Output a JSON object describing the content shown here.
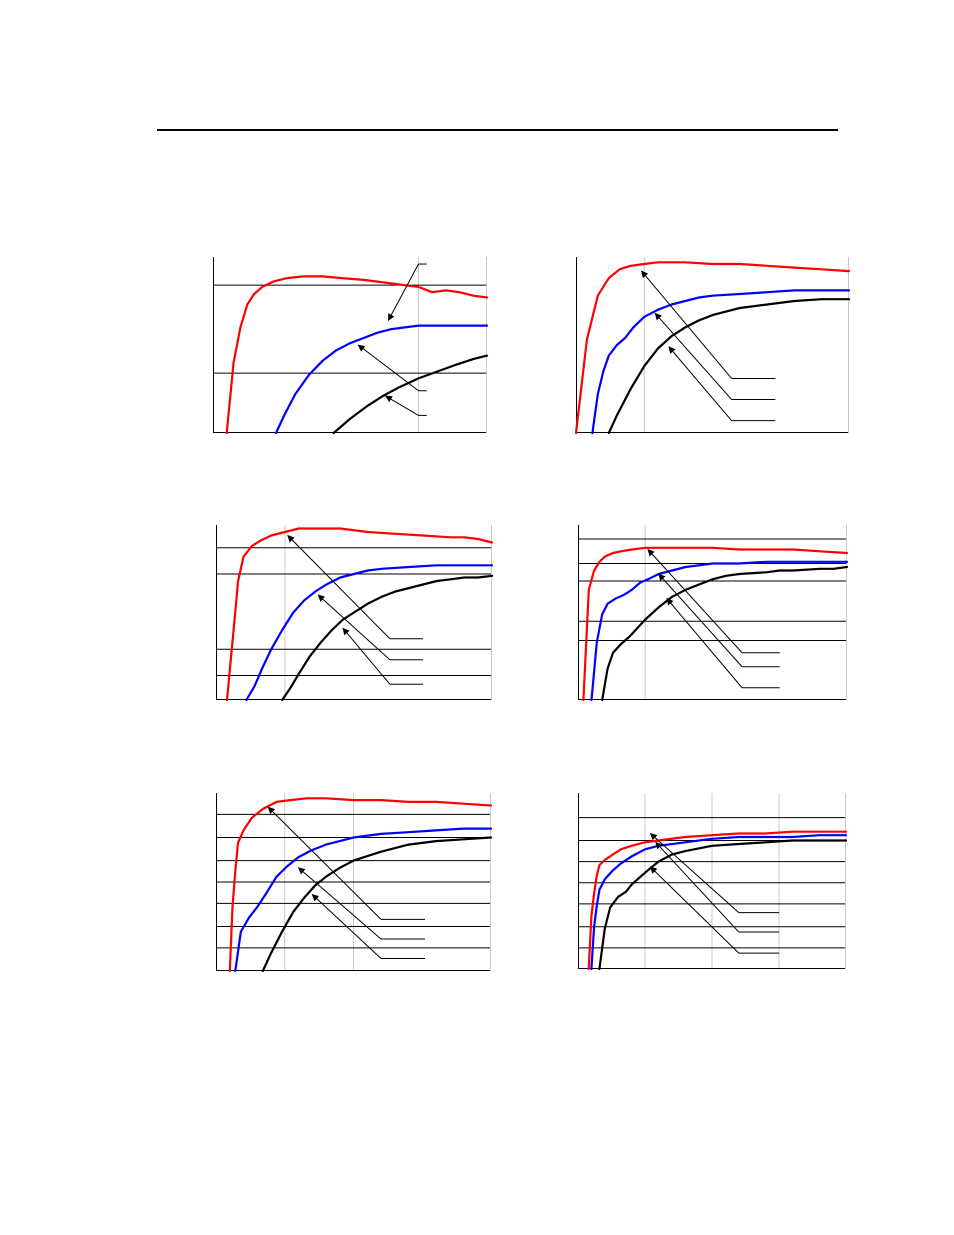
{
  "page": {
    "header_rule": true
  },
  "colors": {
    "red": "#ff0000",
    "blue": "#0000ff",
    "black": "#000000",
    "grid": "#c8c8c8",
    "frame": "#000000"
  },
  "chart_data": [
    {
      "type": "line",
      "title": "",
      "xlabel": "",
      "ylabel": "",
      "x_range": [
        0,
        1
      ],
      "y_range": [
        0,
        1
      ],
      "grid_x": [
        0.75
      ],
      "grid_y": [
        0.34,
        0.84
      ],
      "series": [
        {
          "color": "#ff0000",
          "x": [
            0.05,
            0.075,
            0.1,
            0.125,
            0.15,
            0.18,
            0.22,
            0.27,
            0.33,
            0.4,
            0.47,
            0.55,
            0.6,
            0.65,
            0.7,
            0.75,
            0.8,
            0.85,
            0.9,
            0.95,
            1.0
          ],
          "y": [
            0.0,
            0.4,
            0.6,
            0.73,
            0.79,
            0.83,
            0.86,
            0.88,
            0.89,
            0.89,
            0.88,
            0.87,
            0.86,
            0.85,
            0.84,
            0.83,
            0.8,
            0.81,
            0.8,
            0.78,
            0.77
          ]
        },
        {
          "color": "#0000ff",
          "x": [
            0.23,
            0.26,
            0.3,
            0.35,
            0.4,
            0.45,
            0.5,
            0.55,
            0.6,
            0.65,
            0.7,
            0.75,
            0.8,
            0.85,
            1.0
          ],
          "y": [
            0.0,
            0.1,
            0.22,
            0.33,
            0.41,
            0.47,
            0.51,
            0.54,
            0.57,
            0.59,
            0.6,
            0.61,
            0.61,
            0.61,
            0.61
          ]
        },
        {
          "color": "#000000",
          "x": [
            0.44,
            0.5,
            0.56,
            0.62,
            0.68,
            0.75,
            0.82,
            0.89,
            0.95,
            1.0
          ],
          "y": [
            0.0,
            0.08,
            0.15,
            0.21,
            0.26,
            0.31,
            0.35,
            0.39,
            0.42,
            0.44
          ]
        }
      ],
      "callouts": [
        {
          "from": [
            0.64,
            0.64
          ],
          "knee": [
            0.75,
            0.96
          ],
          "to": [
            0.78,
            0.96
          ]
        },
        {
          "from": [
            0.53,
            0.5
          ],
          "knee": [
            0.75,
            0.24
          ],
          "to": [
            0.78,
            0.24
          ]
        },
        {
          "from": [
            0.63,
            0.21
          ],
          "knee": [
            0.75,
            0.1
          ],
          "to": [
            0.78,
            0.1
          ]
        }
      ]
    },
    {
      "type": "line",
      "title": "",
      "xlabel": "",
      "ylabel": "",
      "x_range": [
        0,
        1
      ],
      "y_range": [
        0,
        1
      ],
      "grid_x": [
        0.25
      ],
      "grid_y": [],
      "series": [
        {
          "color": "#ff0000",
          "x": [
            0.0,
            0.04,
            0.08,
            0.12,
            0.16,
            0.2,
            0.25,
            0.3,
            0.35,
            0.4,
            0.5,
            0.6,
            0.7,
            0.8,
            0.9,
            1.0
          ],
          "y": [
            0.0,
            0.53,
            0.78,
            0.88,
            0.93,
            0.95,
            0.96,
            0.97,
            0.97,
            0.97,
            0.96,
            0.96,
            0.95,
            0.94,
            0.93,
            0.92
          ]
        },
        {
          "color": "#0000ff",
          "x": [
            0.06,
            0.08,
            0.1,
            0.12,
            0.15,
            0.18,
            0.21,
            0.25,
            0.3,
            0.35,
            0.4,
            0.45,
            0.5,
            0.6,
            0.7,
            0.8,
            0.9,
            1.0
          ],
          "y": [
            0.0,
            0.22,
            0.35,
            0.44,
            0.5,
            0.54,
            0.6,
            0.66,
            0.7,
            0.73,
            0.75,
            0.77,
            0.78,
            0.79,
            0.8,
            0.81,
            0.81,
            0.81
          ]
        },
        {
          "color": "#000000",
          "x": [
            0.12,
            0.15,
            0.2,
            0.25,
            0.3,
            0.35,
            0.4,
            0.45,
            0.5,
            0.6,
            0.7,
            0.8,
            0.9,
            1.0
          ],
          "y": [
            0.0,
            0.1,
            0.25,
            0.38,
            0.48,
            0.55,
            0.6,
            0.64,
            0.67,
            0.71,
            0.73,
            0.75,
            0.76,
            0.76
          ]
        }
      ],
      "callouts": [
        {
          "from": [
            0.24,
            0.92
          ],
          "knee": [
            0.57,
            0.31
          ],
          "to": [
            0.73,
            0.31
          ]
        },
        {
          "from": [
            0.29,
            0.68
          ],
          "knee": [
            0.57,
            0.19
          ],
          "to": [
            0.73,
            0.19
          ]
        },
        {
          "from": [
            0.34,
            0.49
          ],
          "knee": [
            0.57,
            0.07
          ],
          "to": [
            0.73,
            0.07
          ]
        }
      ]
    },
    {
      "type": "line",
      "title": "",
      "xlabel": "",
      "ylabel": "",
      "x_range": [
        0,
        1
      ],
      "y_range": [
        0,
        1
      ],
      "grid_x": [
        0.25
      ],
      "grid_y": [
        0.14,
        0.29,
        0.72,
        0.87
      ],
      "series": [
        {
          "color": "#ff0000",
          "x": [
            0.04,
            0.06,
            0.08,
            0.1,
            0.13,
            0.16,
            0.2,
            0.25,
            0.3,
            0.35,
            0.45,
            0.55,
            0.65,
            0.75,
            0.85,
            0.9,
            0.95,
            1.0
          ],
          "y": [
            0.0,
            0.34,
            0.68,
            0.82,
            0.88,
            0.91,
            0.94,
            0.96,
            0.98,
            0.98,
            0.98,
            0.96,
            0.95,
            0.94,
            0.93,
            0.93,
            0.92,
            0.9
          ]
        },
        {
          "color": "#0000ff",
          "x": [
            0.11,
            0.14,
            0.17,
            0.2,
            0.24,
            0.28,
            0.32,
            0.36,
            0.4,
            0.45,
            0.5,
            0.55,
            0.6,
            0.7,
            0.8,
            0.9,
            1.0
          ],
          "y": [
            0.0,
            0.08,
            0.19,
            0.29,
            0.4,
            0.5,
            0.57,
            0.62,
            0.66,
            0.7,
            0.72,
            0.74,
            0.75,
            0.76,
            0.77,
            0.77,
            0.77
          ]
        },
        {
          "color": "#000000",
          "x": [
            0.24,
            0.27,
            0.3,
            0.34,
            0.38,
            0.42,
            0.46,
            0.5,
            0.55,
            0.6,
            0.65,
            0.7,
            0.75,
            0.8,
            0.85,
            0.9,
            0.95,
            1.0
          ],
          "y": [
            0.0,
            0.07,
            0.15,
            0.25,
            0.33,
            0.4,
            0.46,
            0.5,
            0.55,
            0.59,
            0.62,
            0.64,
            0.66,
            0.68,
            0.69,
            0.7,
            0.7,
            0.71
          ]
        }
      ],
      "callouts": [
        {
          "from": [
            0.26,
            0.94
          ],
          "knee": [
            0.63,
            0.35
          ],
          "to": [
            0.75,
            0.35
          ]
        },
        {
          "from": [
            0.37,
            0.6
          ],
          "knee": [
            0.63,
            0.23
          ],
          "to": [
            0.75,
            0.23
          ]
        },
        {
          "from": [
            0.46,
            0.41
          ],
          "knee": [
            0.63,
            0.09
          ],
          "to": [
            0.75,
            0.09
          ]
        }
      ]
    },
    {
      "type": "line",
      "title": "",
      "xlabel": "",
      "ylabel": "",
      "x_range": [
        0,
        1
      ],
      "y_range": [
        0,
        1
      ],
      "grid_x": [
        0.25
      ],
      "grid_y": [
        0.34,
        0.45,
        0.68,
        0.78,
        0.92
      ],
      "series": [
        {
          "color": "#ff0000",
          "x": [
            0.02,
            0.04,
            0.06,
            0.08,
            0.1,
            0.13,
            0.16,
            0.2,
            0.25,
            0.3,
            0.4,
            0.5,
            0.6,
            0.7,
            0.8,
            0.9,
            1.0
          ],
          "y": [
            0.0,
            0.63,
            0.74,
            0.79,
            0.82,
            0.84,
            0.85,
            0.86,
            0.87,
            0.87,
            0.87,
            0.87,
            0.86,
            0.86,
            0.86,
            0.85,
            0.84
          ]
        },
        {
          "color": "#0000ff",
          "x": [
            0.05,
            0.07,
            0.09,
            0.11,
            0.14,
            0.17,
            0.2,
            0.23,
            0.26,
            0.3,
            0.35,
            0.4,
            0.45,
            0.5,
            0.6,
            0.7,
            0.8,
            0.9,
            1.0
          ],
          "y": [
            0.0,
            0.33,
            0.49,
            0.55,
            0.58,
            0.6,
            0.63,
            0.67,
            0.69,
            0.72,
            0.74,
            0.76,
            0.77,
            0.78,
            0.78,
            0.79,
            0.79,
            0.79,
            0.79
          ]
        },
        {
          "color": "#000000",
          "x": [
            0.09,
            0.11,
            0.13,
            0.16,
            0.19,
            0.22,
            0.25,
            0.3,
            0.35,
            0.4,
            0.45,
            0.5,
            0.55,
            0.6,
            0.7,
            0.75,
            0.8,
            0.9,
            0.95,
            1.0
          ],
          "y": [
            0.0,
            0.18,
            0.27,
            0.32,
            0.36,
            0.41,
            0.46,
            0.53,
            0.59,
            0.63,
            0.66,
            0.69,
            0.71,
            0.72,
            0.73,
            0.74,
            0.74,
            0.75,
            0.75,
            0.76
          ]
        }
      ],
      "callouts": [
        {
          "from": [
            0.26,
            0.86
          ],
          "knee": [
            0.61,
            0.27
          ],
          "to": [
            0.75,
            0.27
          ]
        },
        {
          "from": [
            0.3,
            0.72
          ],
          "knee": [
            0.61,
            0.19
          ],
          "to": [
            0.75,
            0.19
          ]
        },
        {
          "from": [
            0.33,
            0.58
          ],
          "knee": [
            0.61,
            0.07
          ],
          "to": [
            0.75,
            0.07
          ]
        }
      ]
    },
    {
      "type": "line",
      "title": "",
      "xlabel": "",
      "ylabel": "",
      "x_range": [
        0,
        1
      ],
      "y_range": [
        0,
        1
      ],
      "grid_x": [
        0.25,
        0.5
      ],
      "grid_y": [
        0.13,
        0.25,
        0.38,
        0.5,
        0.62,
        0.75,
        0.88
      ],
      "series": [
        {
          "color": "#ff0000",
          "x": [
            0.05,
            0.06,
            0.07,
            0.08,
            0.1,
            0.13,
            0.17,
            0.22,
            0.27,
            0.33,
            0.4,
            0.5,
            0.6,
            0.7,
            0.8,
            0.9,
            1.0
          ],
          "y": [
            0.0,
            0.36,
            0.56,
            0.72,
            0.79,
            0.86,
            0.91,
            0.95,
            0.96,
            0.97,
            0.97,
            0.96,
            0.96,
            0.95,
            0.95,
            0.94,
            0.93
          ]
        },
        {
          "color": "#0000ff",
          "x": [
            0.07,
            0.09,
            0.12,
            0.15,
            0.18,
            0.22,
            0.26,
            0.3,
            0.35,
            0.4,
            0.45,
            0.5,
            0.6,
            0.7,
            0.8,
            0.9,
            1.0
          ],
          "y": [
            0.0,
            0.22,
            0.3,
            0.36,
            0.43,
            0.53,
            0.59,
            0.64,
            0.68,
            0.71,
            0.73,
            0.75,
            0.77,
            0.78,
            0.79,
            0.8,
            0.8
          ]
        },
        {
          "color": "#000000",
          "x": [
            0.17,
            0.2,
            0.24,
            0.28,
            0.32,
            0.36,
            0.4,
            0.45,
            0.5,
            0.6,
            0.7,
            0.8,
            0.9,
            1.0
          ],
          "y": [
            0.0,
            0.1,
            0.22,
            0.33,
            0.41,
            0.48,
            0.53,
            0.58,
            0.62,
            0.67,
            0.71,
            0.73,
            0.74,
            0.75
          ]
        }
      ],
      "callouts": [
        {
          "from": [
            0.19,
            0.92
          ],
          "knee": [
            0.6,
            0.29
          ],
          "to": [
            0.76,
            0.29
          ]
        },
        {
          "from": [
            0.3,
            0.58
          ],
          "knee": [
            0.6,
            0.18
          ],
          "to": [
            0.76,
            0.18
          ]
        },
        {
          "from": [
            0.35,
            0.43
          ],
          "knee": [
            0.6,
            0.07
          ],
          "to": [
            0.76,
            0.07
          ]
        }
      ]
    },
    {
      "type": "line",
      "title": "",
      "xlabel": "",
      "ylabel": "",
      "x_range": [
        0,
        1
      ],
      "y_range": [
        0,
        1
      ],
      "grid_x": [
        0.25,
        0.5,
        0.75
      ],
      "grid_y": [
        0.12,
        0.24,
        0.37,
        0.49,
        0.61,
        0.73,
        0.86
      ],
      "series": [
        {
          "color": "#ff0000",
          "x": [
            0.04,
            0.05,
            0.06,
            0.07,
            0.08,
            0.1,
            0.13,
            0.16,
            0.2,
            0.25,
            0.3,
            0.4,
            0.5,
            0.6,
            0.7,
            0.8,
            0.9,
            1.0
          ],
          "y": [
            0.0,
            0.3,
            0.43,
            0.53,
            0.59,
            0.62,
            0.65,
            0.68,
            0.7,
            0.72,
            0.73,
            0.75,
            0.76,
            0.77,
            0.77,
            0.78,
            0.78,
            0.78
          ]
        },
        {
          "color": "#0000ff",
          "x": [
            0.05,
            0.06,
            0.07,
            0.08,
            0.1,
            0.13,
            0.16,
            0.2,
            0.25,
            0.3,
            0.4,
            0.5,
            0.6,
            0.7,
            0.8,
            0.9,
            1.0
          ],
          "y": [
            0.0,
            0.24,
            0.36,
            0.45,
            0.51,
            0.56,
            0.6,
            0.64,
            0.68,
            0.7,
            0.72,
            0.74,
            0.75,
            0.75,
            0.75,
            0.76,
            0.76
          ]
        },
        {
          "color": "#000000",
          "x": [
            0.08,
            0.1,
            0.12,
            0.13,
            0.15,
            0.18,
            0.2,
            0.23,
            0.26,
            0.3,
            0.35,
            0.4,
            0.5,
            0.6,
            0.7,
            0.8,
            0.9,
            1.0
          ],
          "y": [
            0.0,
            0.23,
            0.35,
            0.37,
            0.41,
            0.44,
            0.48,
            0.52,
            0.56,
            0.61,
            0.65,
            0.67,
            0.7,
            0.71,
            0.72,
            0.73,
            0.73,
            0.73
          ]
        }
      ],
      "callouts": [
        {
          "from": [
            0.27,
            0.77
          ],
          "knee": [
            0.6,
            0.32
          ],
          "to": [
            0.75,
            0.32
          ]
        },
        {
          "from": [
            0.29,
            0.72
          ],
          "knee": [
            0.6,
            0.21
          ],
          "to": [
            0.75,
            0.21
          ]
        },
        {
          "from": [
            0.27,
            0.58
          ],
          "knee": [
            0.6,
            0.09
          ],
          "to": [
            0.75,
            0.09
          ]
        }
      ]
    }
  ]
}
